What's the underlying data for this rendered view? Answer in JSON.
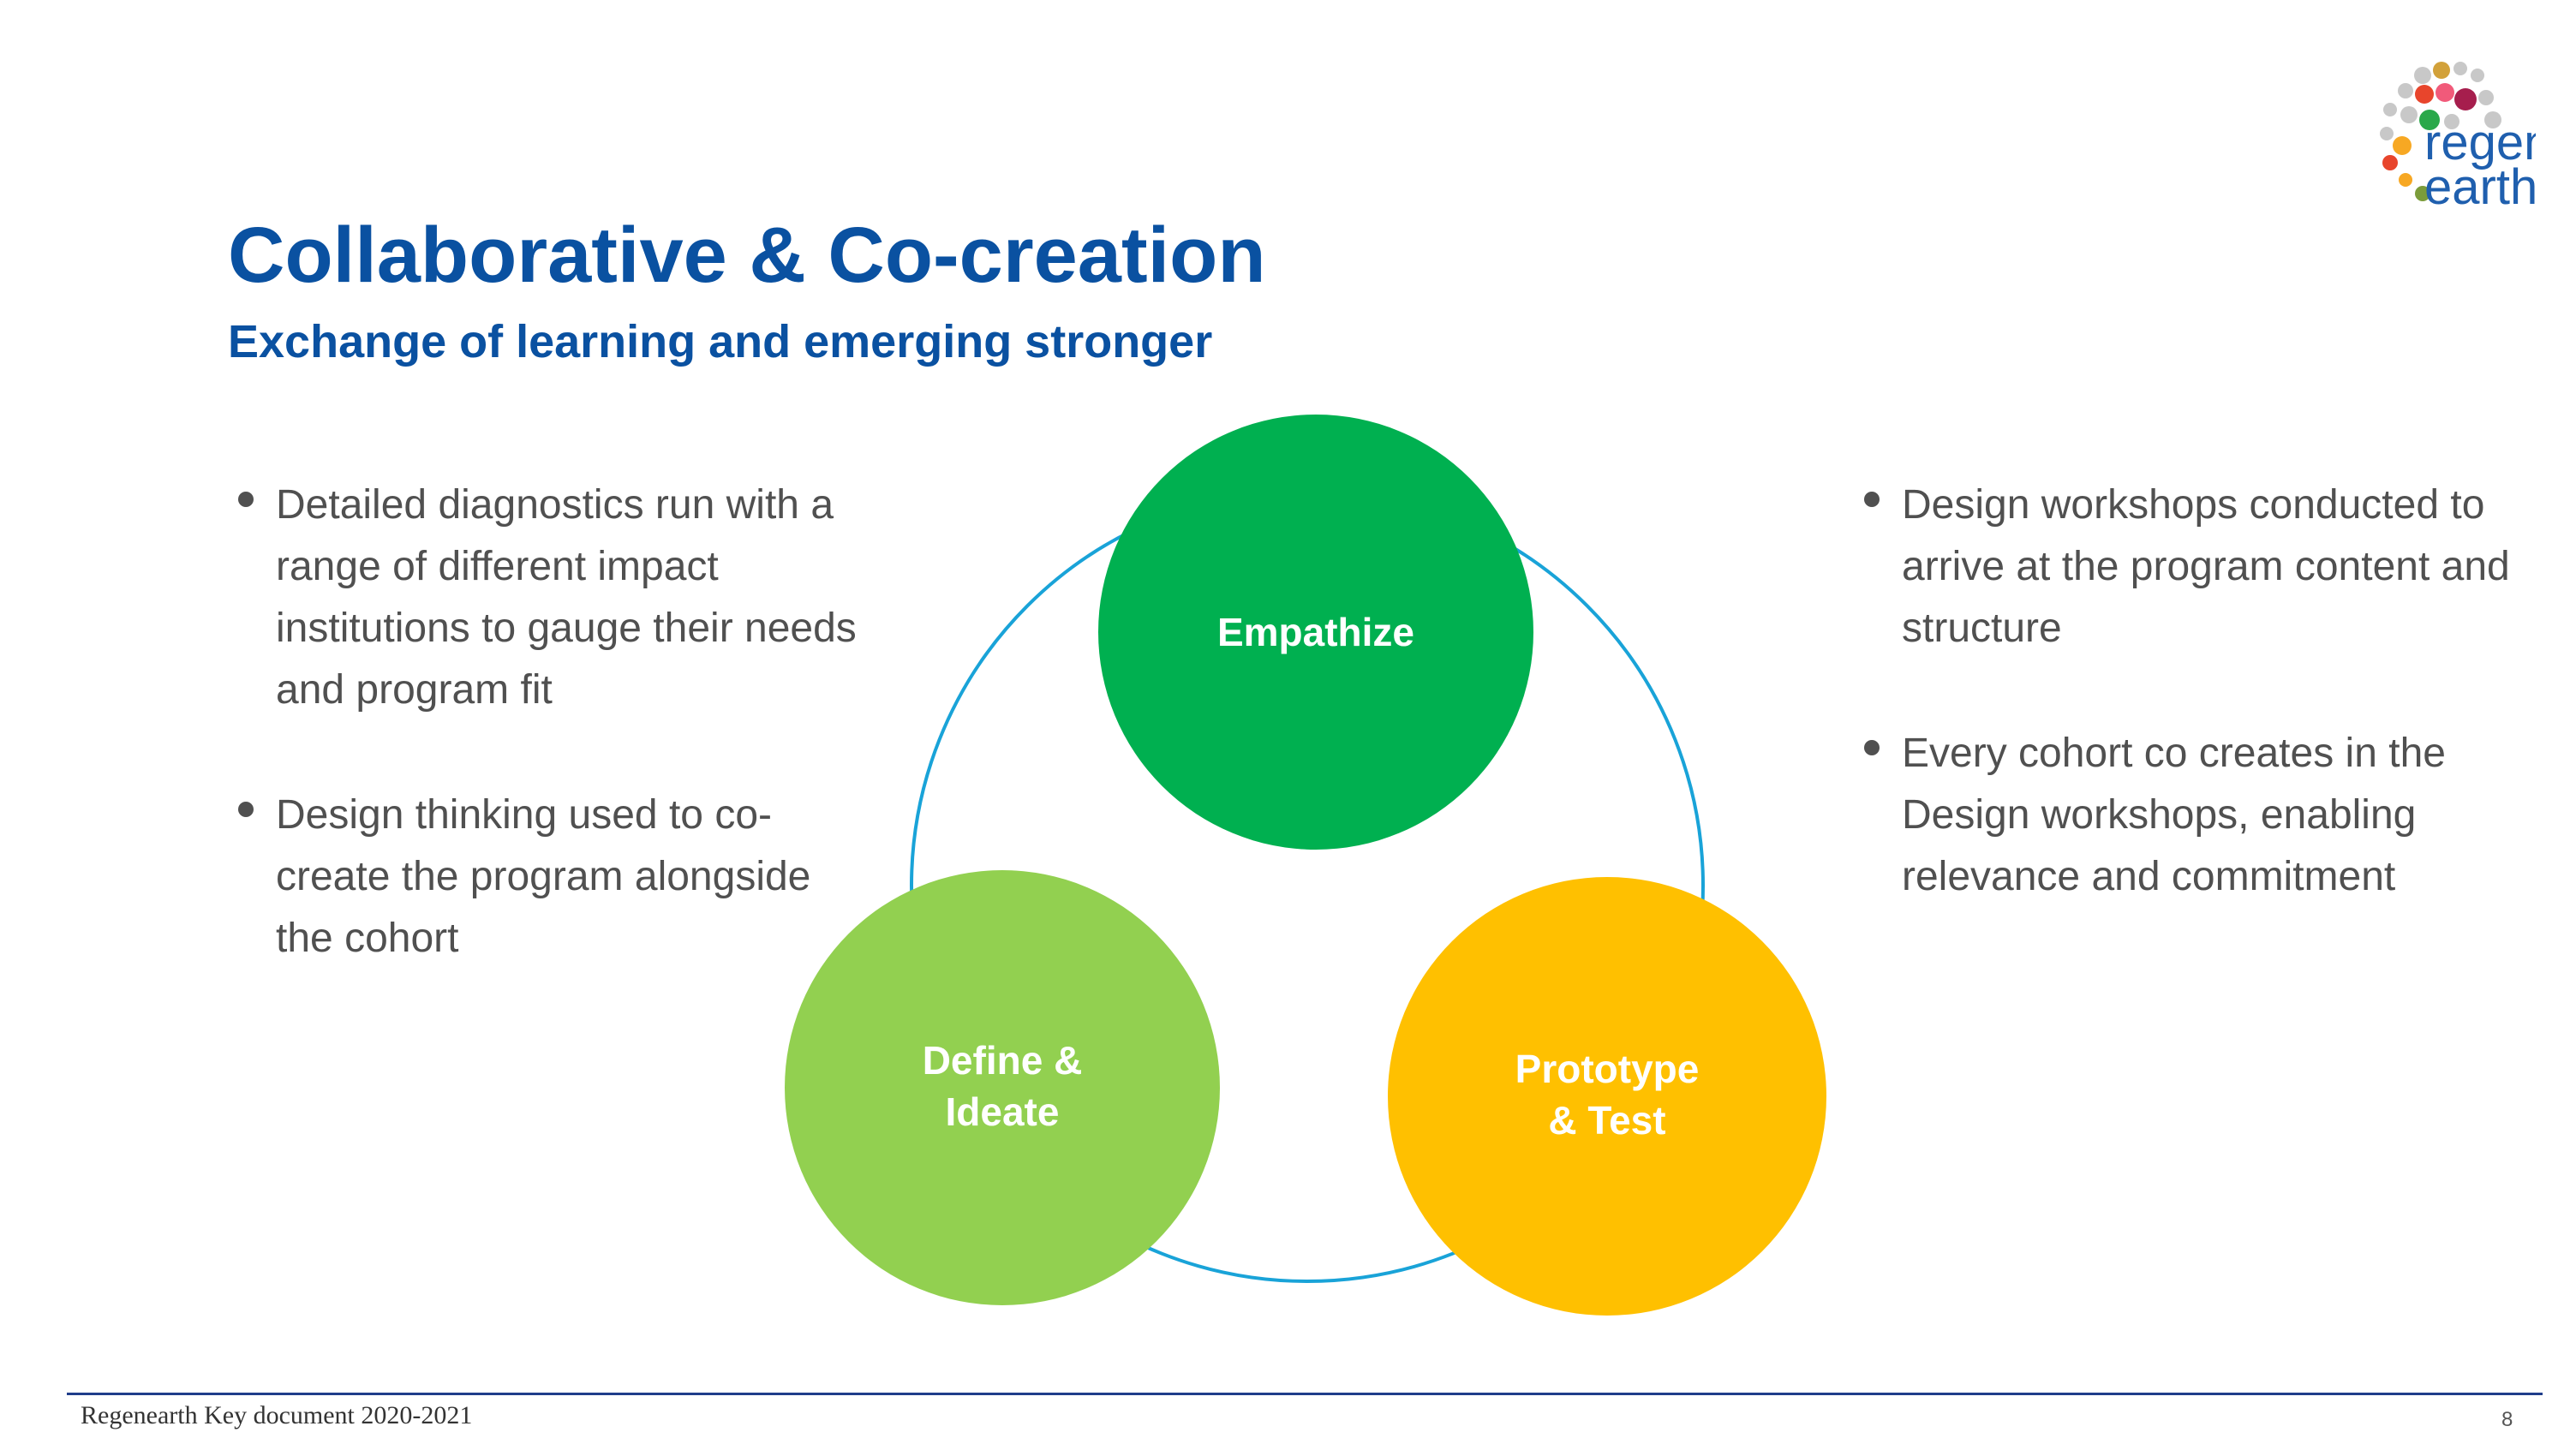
{
  "slide": {
    "title": "Collaborative & Co-creation",
    "subtitle": "Exchange of learning and emerging stronger"
  },
  "logo": {
    "line1": "regen",
    "line2": "earth",
    "text_color": "#1f5fae",
    "dot_colors": [
      "#c8c8c8",
      "#e8452c",
      "#f15a7a",
      "#d2a13a",
      "#a61e4d",
      "#2aa84a",
      "#f7a823",
      "#e8452c",
      "#c8c8c8",
      "#7b9c3a"
    ]
  },
  "left_bullets": [
    "Detailed diagnostics run with a range of different impact institutions to gauge their needs and program fit",
    "Design thinking used to co-create the program alongside the cohort"
  ],
  "right_bullets": [
    "Design workshops conducted to arrive at the program content and structure",
    "Every cohort co creates in the Design workshops, enabling relevance and commitment"
  ],
  "cycle": {
    "ring_color": "#19a3d8",
    "stages": [
      {
        "line1": "Empathize",
        "line2": "",
        "color": "#00b050"
      },
      {
        "line1": "Define &",
        "line2": "Ideate",
        "color": "#92d050"
      },
      {
        "line1": "Prototype",
        "line2": "& Test",
        "color": "#ffc000"
      }
    ]
  },
  "footer": {
    "text": "Regenearth Key document 2020-2021",
    "page": "8"
  }
}
